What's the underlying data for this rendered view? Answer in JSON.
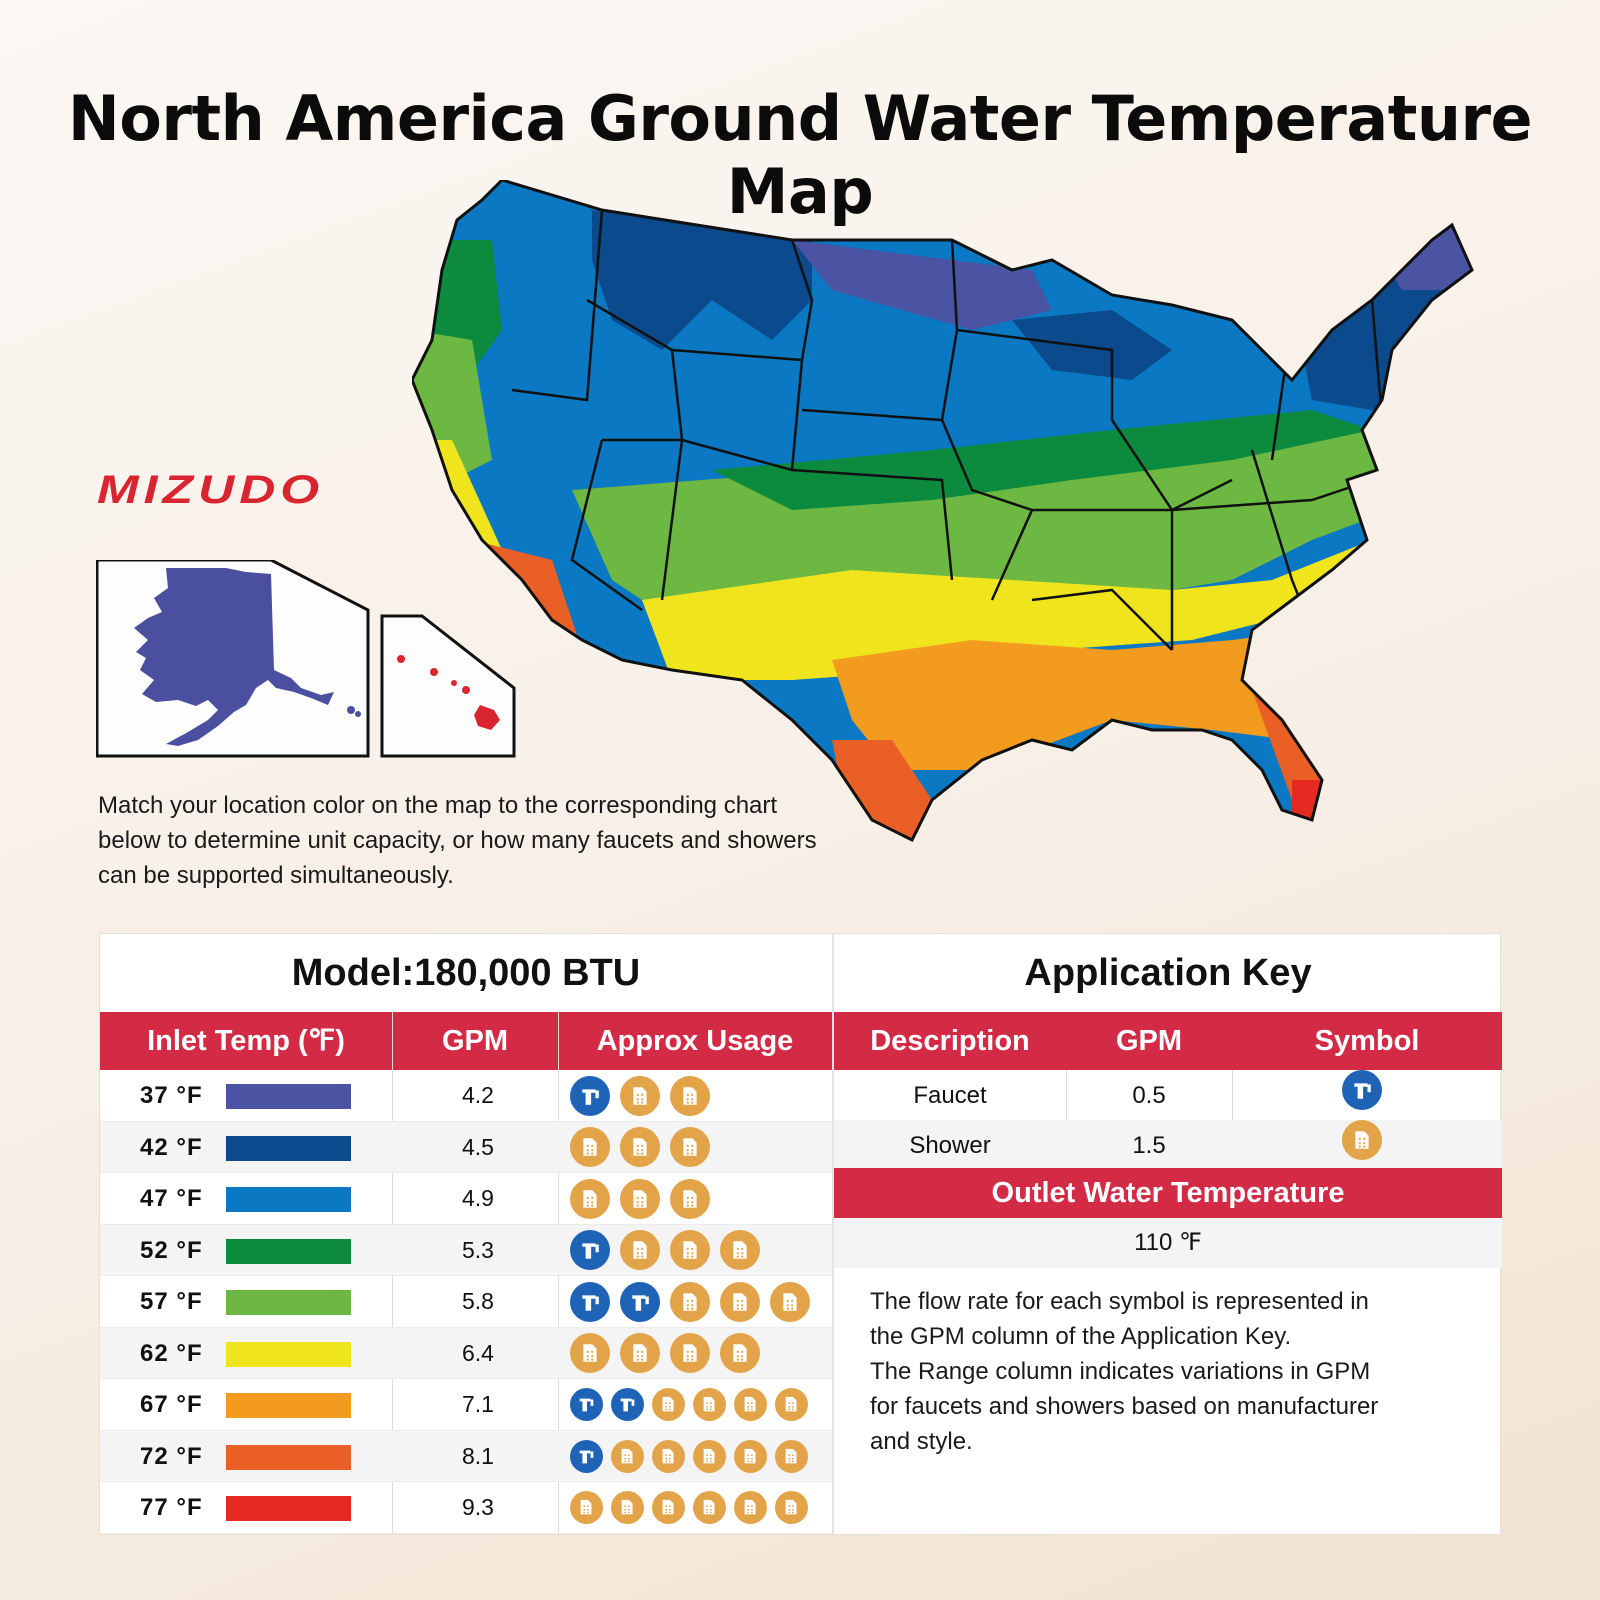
{
  "title": "North America Ground Water Temperature Map",
  "brand": "MIZUDO",
  "intro": "Match your location color on the map to the corresponding chart below to determine unit capacity, or how many faucets and showers can be supported simultaneously.",
  "colors": {
    "header_red": "#d32a45",
    "faucet_blue": "#1e63b5",
    "shower_orange": "#e2a349",
    "alaska": "#4a4f9f",
    "hawaii": "#d9252f"
  },
  "capacity_table": {
    "model": "Model:180,000 BTU",
    "headers": [
      "Inlet Temp (℉)",
      "GPM",
      "Approx Usage"
    ],
    "rows": [
      {
        "temp": "37 °F",
        "color": "#4b53a3",
        "gpm": "4.2",
        "usage": [
          "faucet",
          "shower",
          "shower"
        ]
      },
      {
        "temp": "42 °F",
        "color": "#0b4a8c",
        "gpm": "4.5",
        "usage": [
          "shower",
          "shower",
          "shower"
        ]
      },
      {
        "temp": "47 °F",
        "color": "#0a78c2",
        "gpm": "4.9",
        "usage": [
          "shower",
          "shower",
          "shower"
        ]
      },
      {
        "temp": "52 °F",
        "color": "#0c8b3f",
        "gpm": "5.3",
        "usage": [
          "faucet",
          "shower",
          "shower",
          "shower"
        ]
      },
      {
        "temp": "57 °F",
        "color": "#6db843",
        "gpm": "5.8",
        "usage": [
          "faucet",
          "faucet",
          "shower",
          "shower",
          "shower"
        ]
      },
      {
        "temp": "62 °F",
        "color": "#f0e51c",
        "gpm": "6.4",
        "usage": [
          "shower",
          "shower",
          "shower",
          "shower"
        ]
      },
      {
        "temp": "67 °F",
        "color": "#f29b1f",
        "gpm": "7.1",
        "usage": [
          "faucet",
          "faucet",
          "shower",
          "shower",
          "shower",
          "shower"
        ]
      },
      {
        "temp": "72 °F",
        "color": "#ea5f26",
        "gpm": "8.1",
        "usage": [
          "faucet",
          "shower",
          "shower",
          "shower",
          "shower",
          "shower"
        ]
      },
      {
        "temp": "77 °F",
        "color": "#e62a22",
        "gpm": "9.3",
        "usage": [
          "shower",
          "shower",
          "shower",
          "shower",
          "shower",
          "shower"
        ]
      }
    ]
  },
  "application_key": {
    "title": "Application Key",
    "headers": [
      "Description",
      "GPM",
      "Symbol"
    ],
    "rows": [
      {
        "description": "Faucet",
        "gpm": "0.5",
        "symbol": "faucet"
      },
      {
        "description": "Shower",
        "gpm": "1.5",
        "symbol": "shower"
      }
    ],
    "outlet_title": "Outlet Water Temperature",
    "outlet_value": "110 ℉",
    "note_lines": [
      "The flow rate for each symbol is represented in",
      "the GPM column of the Application Key.",
      "The Range column indicates variations in GPM",
      "for faucets and showers based on manufacturer",
      "and style."
    ]
  },
  "map_bands": [
    "#4b53a3",
    "#0b4a8c",
    "#0a78c2",
    "#0c8b3f",
    "#6db843",
    "#f0e51c",
    "#f29b1f",
    "#ea5f26",
    "#e62a22"
  ]
}
